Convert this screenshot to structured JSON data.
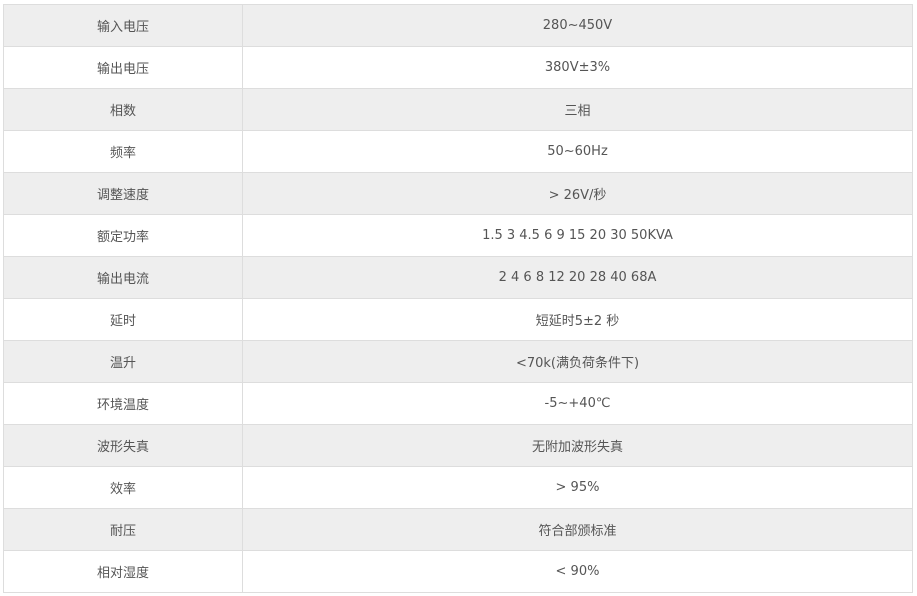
{
  "colors": {
    "stripe": "#eeeeee",
    "border": "#dddddd",
    "text": "#555555"
  },
  "rows": [
    {
      "label": "输入电压",
      "value": "280~450V"
    },
    {
      "label": "输出电压",
      "value": "380V±3%"
    },
    {
      "label": "相数",
      "value": "三相"
    },
    {
      "label": "频率",
      "value": "50~60Hz"
    },
    {
      "label": "调整速度",
      "value": "> 26V/秒"
    },
    {
      "label": "额定功率",
      "value": "1.5 3 4.5 6 9 15 20 30 50KVA"
    },
    {
      "label": "输出电流",
      "value": "2 4 6 8 12 20 28 40 68A"
    },
    {
      "label": "延时",
      "value": "短延时5±2 秒"
    },
    {
      "label": "温升",
      "value": "<70k(满负荷条件下)"
    },
    {
      "label": "环境温度",
      "value": "-5~+40℃"
    },
    {
      "label": "波形失真",
      "value": "无附加波形失真"
    },
    {
      "label": "效率",
      "value": "> 95%"
    },
    {
      "label": "耐压",
      "value": "符合部颁标准"
    },
    {
      "label": "相对湿度",
      "value": "< 90%"
    }
  ]
}
